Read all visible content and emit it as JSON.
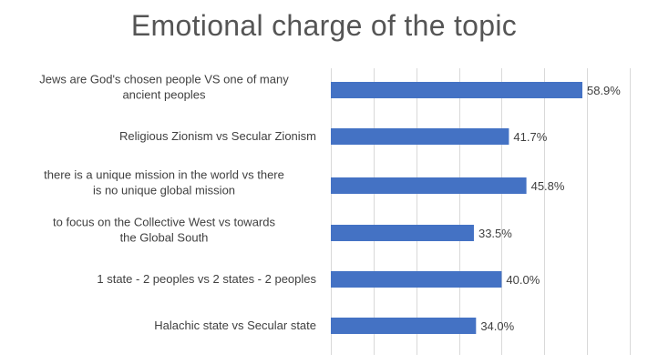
{
  "chart_data": {
    "type": "bar",
    "orientation": "horizontal",
    "title": "Emotional charge of the topic",
    "categories": [
      [
        "Jews are God's chosen people VS one of many",
        "ancient peoples"
      ],
      [
        "Religious Zionism vs Secular Zionism"
      ],
      [
        "there is a unique mission in the world vs there",
        "is no unique global mission"
      ],
      [
        "to focus on the Collective West  vs towards",
        "the Global South"
      ],
      [
        "1 state - 2 peoples vs 2 states - 2 peoples"
      ],
      [
        "Halachic state vs Secular state"
      ]
    ],
    "values": [
      58.9,
      41.7,
      45.8,
      33.5,
      40.0,
      34.0
    ],
    "value_labels": [
      "58.9%",
      "41.7%",
      "45.8%",
      "33.5%",
      "40.0%",
      "34.0%"
    ],
    "xlim": [
      0,
      70
    ],
    "grid": true,
    "bar_color": "#4472C4",
    "grid_color": "#d9d9d9",
    "xlabel": "",
    "ylabel": ""
  }
}
